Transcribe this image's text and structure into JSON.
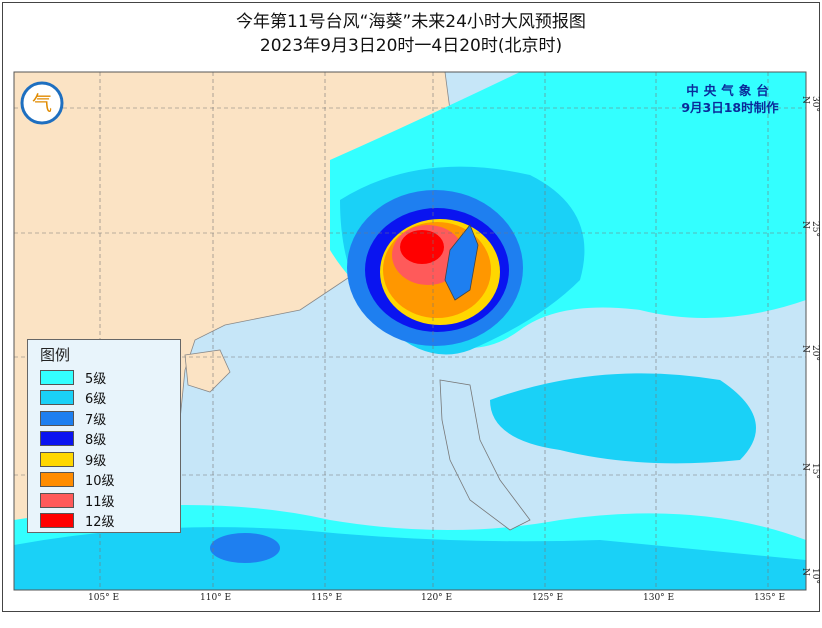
{
  "title": {
    "line1": "今年第11号台风“海葵”未来24小时大风预报图",
    "line2": "2023年9月3日20时一4日20时(北京时)"
  },
  "issuer": {
    "name": "中央气象台",
    "issued": "9月3日18时制作"
  },
  "logo": "气",
  "legend": {
    "title": "图例",
    "items": [
      {
        "label": "5级",
        "color": "#33ffff"
      },
      {
        "label": "6级",
        "color": "#1ad1f7"
      },
      {
        "label": "7级",
        "color": "#1e7ff0"
      },
      {
        "label": "8级",
        "color": "#0a14f0"
      },
      {
        "label": "9级",
        "color": "#ffd700"
      },
      {
        "label": "10级",
        "color": "#ff8c00"
      },
      {
        "label": "11级",
        "color": "#ff5a5a"
      },
      {
        "label": "12级",
        "color": "#ff0000"
      }
    ]
  },
  "axes": {
    "lon_ticks": [
      "105° E",
      "110° E",
      "115° E",
      "120° E",
      "125° E",
      "130° E",
      "135° E"
    ],
    "lat_ticks": [
      "30° N",
      "25° N",
      "20° N",
      "15° N",
      "10° N"
    ]
  },
  "colors": {
    "sea": "#c6e6f8",
    "land": "#fbe3c4"
  }
}
